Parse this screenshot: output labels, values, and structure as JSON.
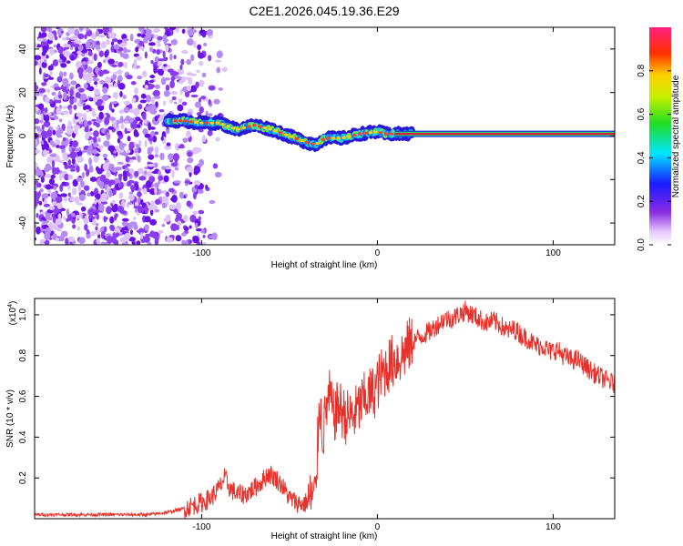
{
  "title": "C2E1.2026.045.19.36.E29",
  "colors": {
    "snr_line": "#e8302a",
    "ridge_core": "#d4203a",
    "axis": "#000000"
  },
  "chart_data": [
    {
      "type": "heatmap",
      "title": "C2E1.2026.045.19.36.E29",
      "xlabel": "Height of straight line (km)",
      "ylabel": "Frequency (Hz)",
      "xlim": [
        -195,
        135
      ],
      "ylim": [
        -50,
        50
      ],
      "x_ticks": [
        -100,
        0,
        100
      ],
      "x_tick_labels": [
        "-100",
        "0",
        "100"
      ],
      "y_ticks": [
        -40,
        -20,
        0,
        20,
        40
      ],
      "y_tick_labels": [
        "-40",
        "-20",
        "0",
        "20",
        "40"
      ],
      "noise_region_x": [
        -195,
        -100
      ],
      "ridge": {
        "x": [
          -120,
          -110,
          -100,
          -90,
          -80,
          -70,
          -60,
          -50,
          -40,
          -35,
          -30,
          -20,
          -10,
          0,
          5,
          10,
          20,
          135
        ],
        "frequency": [
          7,
          7,
          6,
          6,
          3,
          5,
          3,
          0,
          -3,
          -4,
          -1,
          -1,
          1,
          2,
          1,
          1,
          1,
          1
        ]
      },
      "colorbar": {
        "label": "Normalized spectral amplitude",
        "range": [
          0,
          1
        ],
        "ticks": [
          0.0,
          0.2,
          0.4,
          0.6,
          0.8
        ],
        "tick_labels": [
          "0.0",
          "0.2",
          "0.4",
          "0.6",
          "0.8"
        ]
      }
    },
    {
      "type": "line",
      "title": "",
      "xlabel": "Height of straight line (km)",
      "ylabel": "SNR (10 * v/v)",
      "y_multiplier_base": "(x10",
      "y_multiplier_exp": "4",
      "y_multiplier_close": ")",
      "xlim": [
        -195,
        135
      ],
      "ylim": [
        0,
        1.08
      ],
      "x_ticks": [
        -100,
        0,
        100
      ],
      "x_tick_labels": [
        "-100",
        "0",
        "100"
      ],
      "y_ticks": [
        0.2,
        0.4,
        0.6,
        0.8,
        1.0
      ],
      "y_tick_labels": [
        "0.2",
        "0.4",
        "0.6",
        "0.8",
        "1.0"
      ],
      "series": [
        {
          "name": "SNR",
          "x": [
            -195,
            -170,
            -150,
            -130,
            -120,
            -110,
            -100,
            -95,
            -90,
            -87,
            -84,
            -80,
            -75,
            -70,
            -66,
            -62,
            -58,
            -54,
            -50,
            -46,
            -42,
            -38,
            -35,
            -33,
            -31,
            -29,
            -27,
            -25,
            -22,
            -18,
            -14,
            -10,
            -6,
            -2,
            2,
            6,
            10,
            14,
            18,
            22,
            26,
            30,
            34,
            38,
            42,
            46,
            50,
            54,
            58,
            62,
            66,
            70,
            74,
            78,
            82,
            86,
            90,
            94,
            98,
            102,
            106,
            110,
            114,
            118,
            122,
            126,
            130,
            135
          ],
          "values": [
            0.02,
            0.02,
            0.02,
            0.02,
            0.03,
            0.05,
            0.08,
            0.1,
            0.15,
            0.2,
            0.15,
            0.12,
            0.12,
            0.15,
            0.18,
            0.22,
            0.2,
            0.16,
            0.1,
            0.08,
            0.07,
            0.1,
            0.12,
            0.6,
            0.4,
            0.55,
            0.6,
            0.5,
            0.55,
            0.5,
            0.5,
            0.55,
            0.6,
            0.62,
            0.7,
            0.75,
            0.78,
            0.8,
            0.85,
            0.88,
            0.9,
            0.92,
            0.95,
            0.98,
            0.98,
            1.0,
            1.02,
            1.0,
            0.98,
            0.96,
            0.97,
            0.95,
            0.92,
            0.93,
            0.9,
            0.88,
            0.85,
            0.85,
            0.82,
            0.83,
            0.8,
            0.78,
            0.78,
            0.75,
            0.72,
            0.7,
            0.68,
            0.66
          ]
        }
      ]
    }
  ]
}
